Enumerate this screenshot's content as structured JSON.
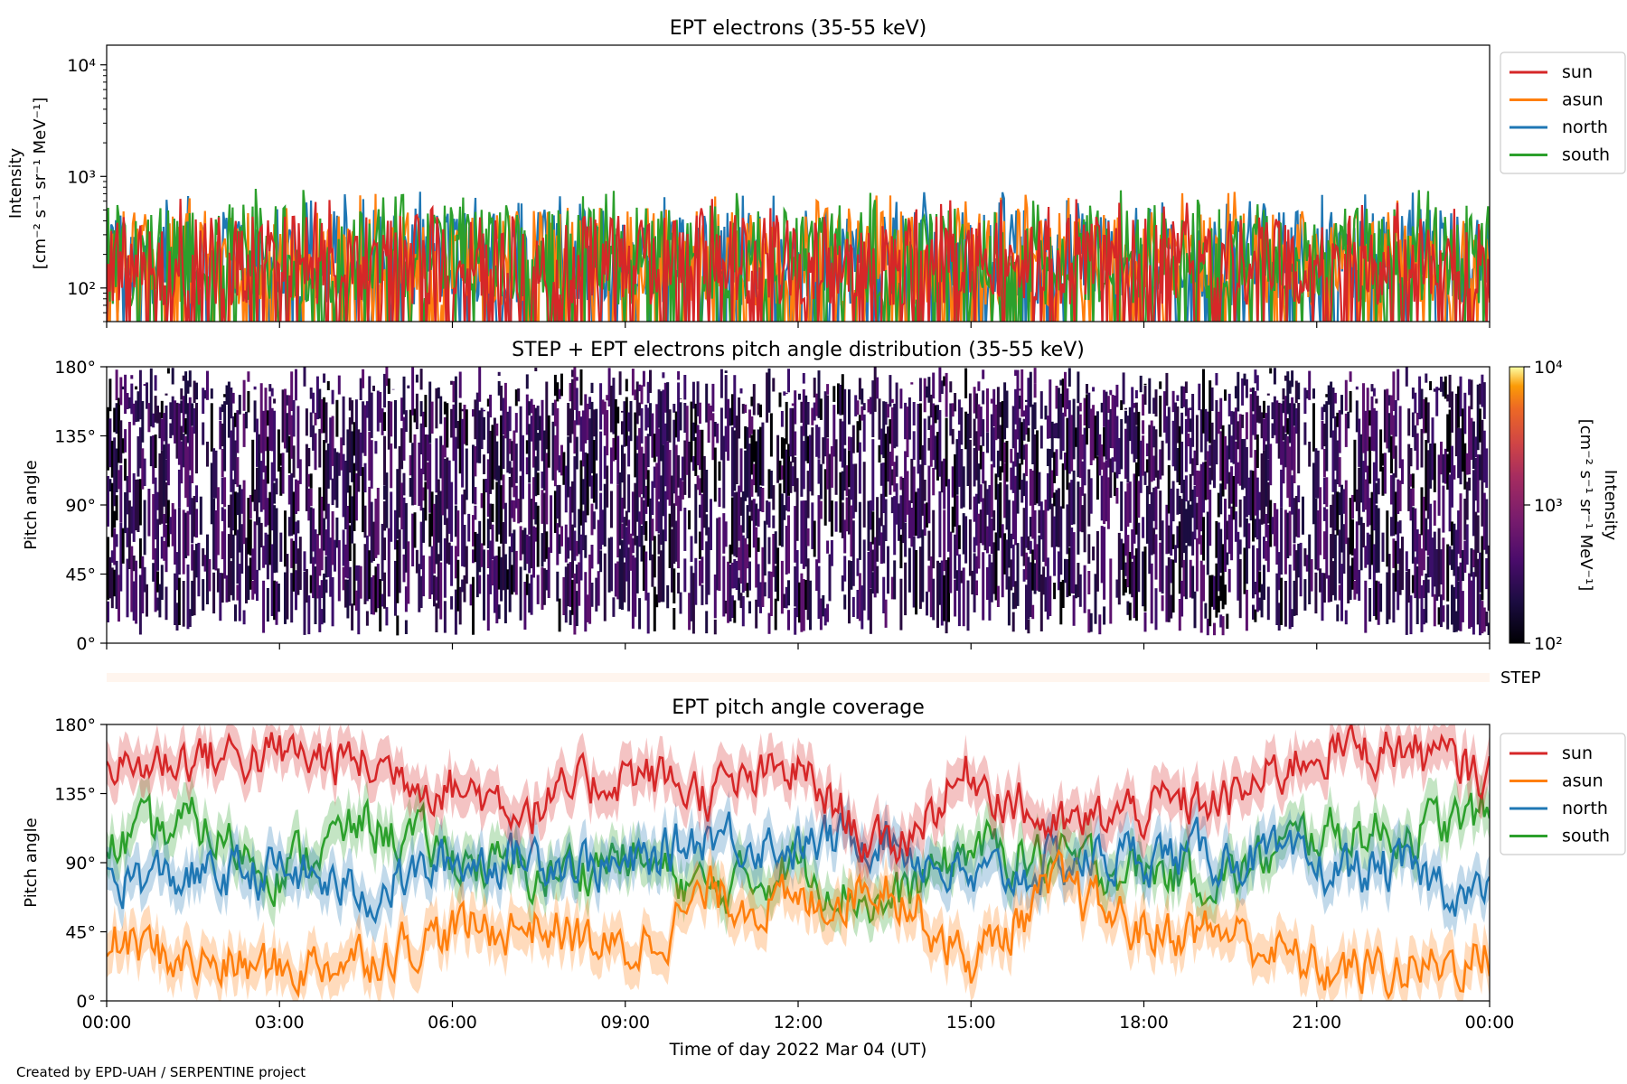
{
  "figure": {
    "footer": "Created by EPD-UAH / SERPENTINE project",
    "xlabel": "Time of day 2022 Mar 04 (UT)",
    "x_ticks": [
      "00:00",
      "03:00",
      "06:00",
      "09:00",
      "12:00",
      "15:00",
      "18:00",
      "21:00",
      "00:00"
    ]
  },
  "chart_data": [
    {
      "type": "line",
      "title": "EPT electrons (35-55 keV)",
      "ylabel_line1": "Intensity",
      "ylabel_line2": "[cm⁻² s⁻¹ sr⁻¹ MeV⁻¹]",
      "yscale": "log",
      "ylim": [
        50,
        15000
      ],
      "y_ticks": [
        {
          "value": 100,
          "label": "10²"
        },
        {
          "value": 1000,
          "label": "10³"
        },
        {
          "value": 10000,
          "label": "10⁴"
        }
      ],
      "xlim_hours": [
        0,
        24
      ],
      "legend_position": "outside-right-top",
      "series": [
        {
          "name": "sun",
          "color": "#d62728",
          "typical_range": [
            50,
            600
          ]
        },
        {
          "name": "asun",
          "color": "#ff7f0e",
          "typical_range": [
            50,
            700
          ]
        },
        {
          "name": "north",
          "color": "#1f77b4",
          "typical_range": [
            50,
            700
          ]
        },
        {
          "name": "south",
          "color": "#2ca02c",
          "typical_range": [
            50,
            750
          ]
        }
      ]
    },
    {
      "type": "heatmap",
      "title": "STEP + EPT electrons pitch angle distribution (35-55 keV)",
      "ylabel": "Pitch angle",
      "ylim": [
        0,
        180
      ],
      "y_ticks": [
        {
          "value": 0,
          "label": "0°"
        },
        {
          "value": 45,
          "label": "45°"
        },
        {
          "value": 90,
          "label": "90°"
        },
        {
          "value": 135,
          "label": "135°"
        },
        {
          "value": 180,
          "label": "180°"
        }
      ],
      "colorbar": {
        "label_line1": "Intensity",
        "label_line2": "[cm⁻² s⁻¹ sr⁻¹ MeV⁻¹]",
        "scale": "log",
        "range": [
          100,
          10000
        ],
        "ticks": [
          {
            "value": 100,
            "label": "10²"
          },
          {
            "value": 1000,
            "label": "10³"
          },
          {
            "value": 10000,
            "label": "10⁴"
          }
        ],
        "colormap": "inferno"
      },
      "step_label": "STEP"
    },
    {
      "type": "line",
      "title": "EPT pitch angle coverage",
      "ylabel": "Pitch angle",
      "ylim": [
        0,
        180
      ],
      "y_ticks": [
        {
          "value": 0,
          "label": "0°"
        },
        {
          "value": 45,
          "label": "45°"
        },
        {
          "value": 90,
          "label": "90°"
        },
        {
          "value": 135,
          "label": "135°"
        },
        {
          "value": 180,
          "label": "180°"
        }
      ],
      "legend_position": "outside-right-top",
      "series": [
        {
          "name": "sun",
          "color": "#d62728",
          "x_hours": [
            0,
            1.5,
            3,
            4.5,
            6,
            7.5,
            9,
            10.5,
            12,
            13.5,
            15,
            16.5,
            18,
            19.5,
            21,
            22.5,
            24
          ],
          "values": [
            150,
            160,
            160,
            155,
            140,
            125,
            150,
            135,
            150,
            95,
            150,
            110,
            125,
            130,
            165,
            165,
            145
          ]
        },
        {
          "name": "asun",
          "color": "#ff7f0e",
          "x_hours": [
            0,
            1.5,
            3,
            4.5,
            6,
            7.5,
            9,
            10.5,
            12,
            13.5,
            15,
            16.5,
            18,
            19.5,
            21,
            22.5,
            24
          ],
          "values": [
            40,
            25,
            20,
            30,
            45,
            50,
            30,
            70,
            60,
            80,
            25,
            75,
            45,
            45,
            20,
            20,
            30
          ]
        },
        {
          "name": "north",
          "color": "#1f77b4",
          "x_hours": [
            0,
            1.5,
            3,
            4.5,
            6,
            7.5,
            9,
            10.5,
            12,
            13.5,
            15,
            16.5,
            18,
            19.5,
            21,
            22.5,
            24
          ],
          "values": [
            80,
            80,
            85,
            70,
            90,
            95,
            85,
            110,
            100,
            110,
            75,
            90,
            95,
            95,
            85,
            85,
            65
          ]
        },
        {
          "name": "south",
          "color": "#2ca02c",
          "x_hours": [
            0,
            1.5,
            3,
            4.5,
            6,
            7.5,
            9,
            10.5,
            12,
            13.5,
            15,
            16.5,
            18,
            19.5,
            21,
            22.5,
            24
          ],
          "values": [
            100,
            115,
            85,
            115,
            95,
            80,
            95,
            70,
            90,
            60,
            100,
            90,
            85,
            80,
            110,
            110,
            120
          ]
        }
      ]
    }
  ]
}
